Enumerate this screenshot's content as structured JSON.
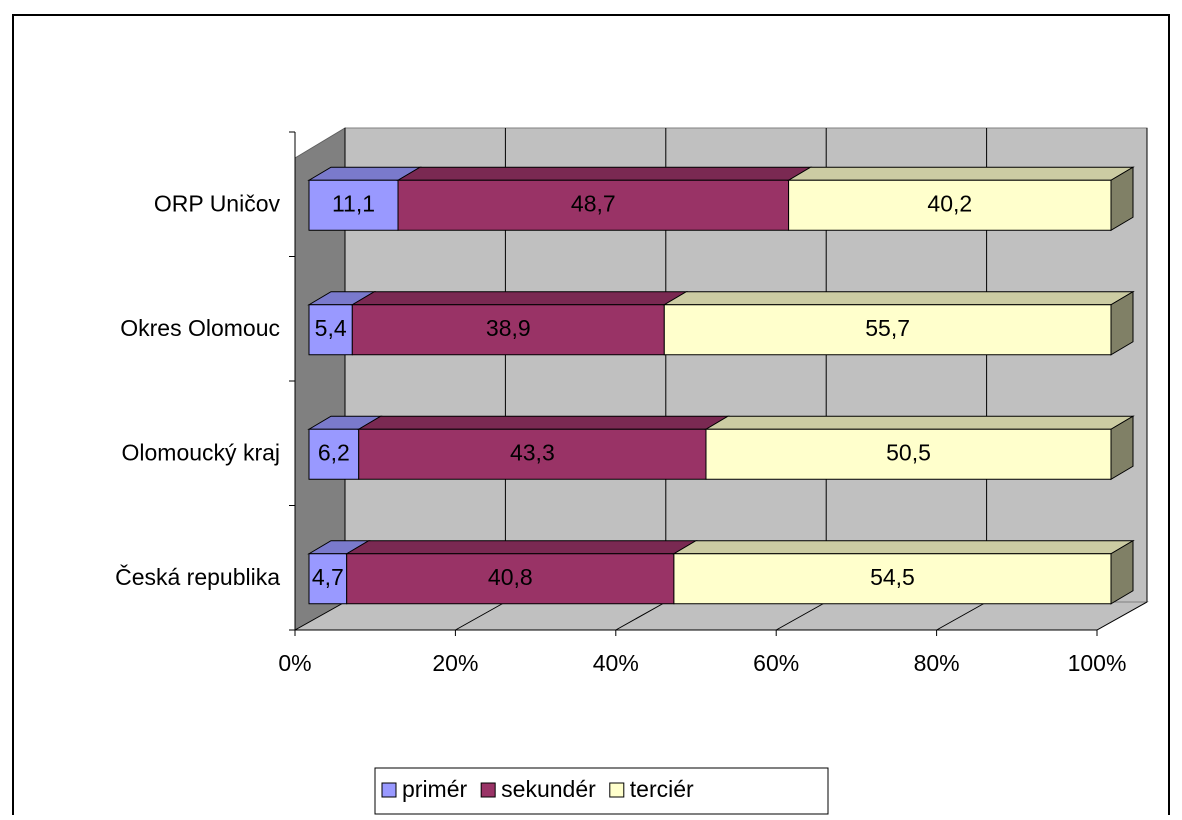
{
  "chart_data": {
    "type": "bar",
    "orientation": "horizontal",
    "stacked": true,
    "three_d": true,
    "categories": [
      "ORP Uničov",
      "Okres Olomouc",
      "Olomoucký kraj",
      "Česká republika"
    ],
    "series": [
      {
        "name": "primér",
        "color": "#9999ff",
        "values": [
          11.1,
          5.4,
          6.2,
          4.7
        ],
        "value_labels": [
          "11,1",
          "5,4",
          "6,2",
          "4,7"
        ]
      },
      {
        "name": "sekundér",
        "color": "#993366",
        "values": [
          48.7,
          38.9,
          43.3,
          40.8
        ],
        "value_labels": [
          "48,7",
          "38,9",
          "43,3",
          "40,8"
        ]
      },
      {
        "name": "terciér",
        "color": "#ffffcc",
        "values": [
          40.2,
          55.7,
          50.5,
          54.5
        ],
        "value_labels": [
          "40,2",
          "55,7",
          "50,5",
          "54,5"
        ]
      }
    ],
    "xlim": [
      0,
      100
    ],
    "xticks": [
      {
        "value": 0,
        "label": "0%"
      },
      {
        "value": 20,
        "label": "20%"
      },
      {
        "value": 40,
        "label": "40%"
      },
      {
        "value": 60,
        "label": "60%"
      },
      {
        "value": 80,
        "label": "80%"
      },
      {
        "value": 100,
        "label": "100%"
      }
    ],
    "grid": true,
    "legend": "bottom"
  }
}
